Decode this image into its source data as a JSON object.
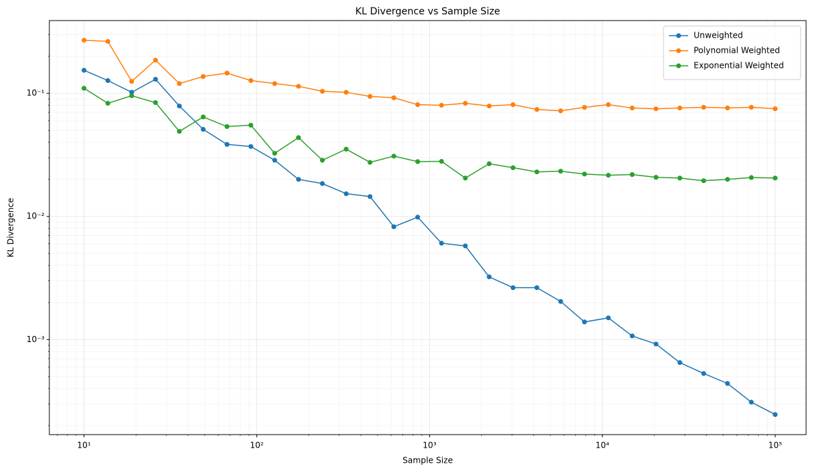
{
  "chart_data": {
    "type": "line",
    "title": "KL Divergence vs Sample Size",
    "x_label": "Sample Size",
    "y_label": "KL Divergence",
    "x": [
      10,
      13.74,
      18.87,
      25.93,
      35.62,
      48.94,
      67.23,
      92.37,
      126.9,
      174.3,
      239.5,
      329.0,
      452.0,
      621.0,
      853.2,
      1172,
      1610,
      2212,
      3039,
      4175,
      5736,
      7880,
      10826,
      14874,
      20434,
      28072,
      38566,
      52983,
      72790,
      100000
    ],
    "series": [
      {
        "name": "Unweighted",
        "color": "#1f77b4",
        "values": [
          0.154,
          0.127,
          0.102,
          0.13,
          0.0789,
          0.051,
          0.0385,
          0.037,
          0.0286,
          0.02,
          0.0185,
          0.0153,
          0.0145,
          0.00825,
          0.00987,
          0.00606,
          0.00576,
          0.00323,
          0.00264,
          0.00264,
          0.00204,
          0.00139,
          0.0015,
          0.00107,
          0.00092,
          0.00065,
          0.00053,
          0.00044,
          0.00031,
          0.000246
        ]
      },
      {
        "name": "Polynomial Weighted",
        "color": "#ff7f0e",
        "values": [
          0.27,
          0.264,
          0.125,
          0.186,
          0.12,
          0.137,
          0.146,
          0.127,
          0.12,
          0.114,
          0.104,
          0.102,
          0.0944,
          0.092,
          0.0809,
          0.08,
          0.083,
          0.0789,
          0.0809,
          0.074,
          0.0721,
          0.0769,
          0.0809,
          0.076,
          0.0749,
          0.076,
          0.077,
          0.076,
          0.077,
          0.075
        ]
      },
      {
        "name": "Exponential Weighted",
        "color": "#2ca02c",
        "values": [
          0.11,
          0.083,
          0.0956,
          0.0841,
          0.0491,
          0.0643,
          0.0537,
          0.0551,
          0.0326,
          0.0437,
          0.0286,
          0.0352,
          0.0275,
          0.0309,
          0.0279,
          0.028,
          0.0205,
          0.0268,
          0.0249,
          0.023,
          0.0233,
          0.0221,
          0.0216,
          0.0219,
          0.0208,
          0.0205,
          0.0195,
          0.02,
          0.0207,
          0.0205
        ]
      }
    ],
    "x_log": true,
    "y_log": true,
    "xlim": [
      6.3,
      151000
    ],
    "ylim": [
      0.000169,
      0.39
    ],
    "xticks": [
      {
        "value": 10,
        "label": "10¹"
      },
      {
        "value": 100,
        "label": "10²"
      },
      {
        "value": 1000,
        "label": "10³"
      },
      {
        "value": 10000,
        "label": "10⁴"
      },
      {
        "value": 100000,
        "label": "10⁵"
      }
    ],
    "yticks": [
      {
        "value": 0.001,
        "label": "10⁻³"
      },
      {
        "value": 0.01,
        "label": "10⁻²"
      },
      {
        "value": 0.1,
        "label": "10⁻¹"
      }
    ],
    "xticks_minor": [
      7,
      8,
      9,
      20,
      30,
      40,
      50,
      60,
      70,
      80,
      90,
      200,
      300,
      400,
      500,
      600,
      700,
      800,
      900,
      2000,
      3000,
      4000,
      5000,
      6000,
      7000,
      8000,
      9000,
      20000,
      30000,
      40000,
      50000,
      60000,
      70000,
      80000,
      90000
    ],
    "yticks_minor": [
      0.0002,
      0.0003,
      0.0004,
      0.0005,
      0.0006,
      0.0007,
      0.0008,
      0.0009,
      0.002,
      0.003,
      0.004,
      0.005,
      0.006,
      0.007,
      0.008,
      0.009,
      0.02,
      0.03,
      0.04,
      0.05,
      0.06,
      0.07,
      0.08,
      0.09,
      0.2,
      0.3
    ],
    "grid": true,
    "legend": "upper right"
  }
}
